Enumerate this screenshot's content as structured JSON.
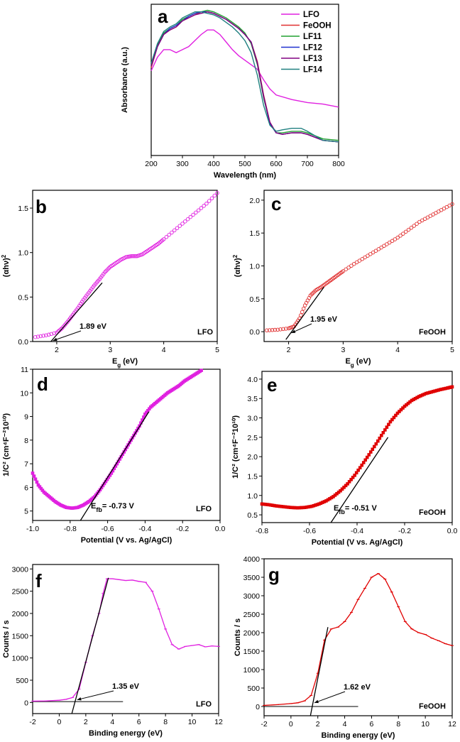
{
  "chart_data": [
    {
      "panel": "a",
      "type": "line",
      "title": "",
      "xlabel": "Wavelength (nm)",
      "ylabel": "Absorbance (a.u.)",
      "xlim": [
        200,
        800
      ],
      "ylim": [
        0,
        1
      ],
      "xticks": [
        200,
        300,
        400,
        500,
        600,
        700,
        800
      ],
      "yticks": [],
      "legend_position": "top-right",
      "series": [
        {
          "name": "LFO",
          "color": "#e020e0",
          "x": [
            200,
            220,
            240,
            260,
            280,
            300,
            320,
            340,
            360,
            380,
            400,
            420,
            440,
            460,
            480,
            500,
            520,
            540,
            560,
            580,
            600,
            650,
            700,
            750,
            800
          ],
          "y": [
            0.56,
            0.65,
            0.7,
            0.7,
            0.68,
            0.7,
            0.72,
            0.76,
            0.8,
            0.83,
            0.83,
            0.8,
            0.75,
            0.7,
            0.66,
            0.63,
            0.6,
            0.57,
            0.5,
            0.44,
            0.4,
            0.37,
            0.35,
            0.34,
            0.32
          ]
        },
        {
          "name": "FeOOH",
          "color": "#e03030",
          "x": [
            200,
            220,
            240,
            260,
            280,
            300,
            320,
            340,
            360,
            380,
            400,
            420,
            440,
            460,
            480,
            500,
            520,
            540,
            560,
            580,
            600,
            620,
            650,
            680,
            700,
            750,
            800
          ],
          "y": [
            0.58,
            0.72,
            0.8,
            0.83,
            0.85,
            0.89,
            0.91,
            0.93,
            0.95,
            0.95,
            0.94,
            0.92,
            0.9,
            0.87,
            0.84,
            0.8,
            0.75,
            0.62,
            0.4,
            0.22,
            0.15,
            0.14,
            0.15,
            0.15,
            0.14,
            0.1,
            0.09
          ]
        },
        {
          "name": "LF11",
          "color": "#20a030",
          "x": [
            200,
            220,
            240,
            260,
            280,
            300,
            320,
            340,
            360,
            380,
            400,
            420,
            440,
            460,
            480,
            500,
            520,
            540,
            560,
            580,
            600,
            620,
            650,
            680,
            700,
            750,
            800
          ],
          "y": [
            0.6,
            0.73,
            0.81,
            0.84,
            0.86,
            0.9,
            0.92,
            0.94,
            0.95,
            0.96,
            0.95,
            0.93,
            0.91,
            0.88,
            0.85,
            0.81,
            0.74,
            0.6,
            0.38,
            0.21,
            0.15,
            0.15,
            0.16,
            0.16,
            0.15,
            0.11,
            0.1
          ]
        },
        {
          "name": "LF12",
          "color": "#2030d0",
          "x": [
            200,
            220,
            240,
            260,
            280,
            300,
            320,
            340,
            360,
            380,
            400,
            420,
            440,
            460,
            480,
            500,
            520,
            540,
            560,
            580,
            600,
            620,
            650,
            680,
            700,
            750,
            800
          ],
          "y": [
            0.59,
            0.72,
            0.8,
            0.84,
            0.86,
            0.89,
            0.92,
            0.94,
            0.95,
            0.95,
            0.94,
            0.92,
            0.9,
            0.87,
            0.84,
            0.8,
            0.75,
            0.61,
            0.39,
            0.21,
            0.15,
            0.14,
            0.15,
            0.15,
            0.14,
            0.1,
            0.09
          ]
        },
        {
          "name": "LF13",
          "color": "#800080",
          "x": [
            200,
            220,
            240,
            260,
            280,
            300,
            320,
            340,
            360,
            380,
            400,
            420,
            440,
            460,
            480,
            500,
            520,
            540,
            560,
            580,
            600,
            620,
            650,
            680,
            700,
            750,
            800
          ],
          "y": [
            0.59,
            0.72,
            0.8,
            0.83,
            0.85,
            0.89,
            0.91,
            0.93,
            0.94,
            0.95,
            0.94,
            0.92,
            0.9,
            0.87,
            0.84,
            0.8,
            0.75,
            0.61,
            0.39,
            0.22,
            0.15,
            0.14,
            0.15,
            0.15,
            0.14,
            0.1,
            0.09
          ]
        },
        {
          "name": "LF14",
          "color": "#208080",
          "x": [
            200,
            220,
            240,
            260,
            280,
            300,
            320,
            340,
            360,
            380,
            400,
            420,
            440,
            460,
            480,
            500,
            520,
            540,
            560,
            580,
            600,
            620,
            650,
            680,
            700,
            750,
            800
          ],
          "y": [
            0.61,
            0.74,
            0.82,
            0.85,
            0.87,
            0.91,
            0.93,
            0.95,
            0.95,
            0.94,
            0.93,
            0.91,
            0.88,
            0.85,
            0.81,
            0.76,
            0.68,
            0.53,
            0.33,
            0.2,
            0.16,
            0.17,
            0.18,
            0.18,
            0.16,
            0.1,
            0.09
          ]
        }
      ]
    },
    {
      "panel": "b",
      "type": "scatter",
      "xlabel": "E",
      "xlabel_sub": "g",
      "xlabel_unit": " (eV)",
      "ylabel": "(αhν)",
      "ylabel_sup": "2",
      "xlim": [
        1.55,
        5
      ],
      "ylim": [
        0,
        1.7
      ],
      "xticks": [
        2,
        3,
        4,
        5
      ],
      "yticks": [
        0.0,
        0.5,
        1.0,
        1.5
      ],
      "ytick_labels": [
        "0.0",
        "0.5",
        "1.0",
        "1.5"
      ],
      "sample": "LFO",
      "color": "#e020e0",
      "marker": "open-circle",
      "x": [
        1.6,
        1.8,
        2.0,
        2.1,
        2.2,
        2.3,
        2.4,
        2.5,
        2.6,
        2.7,
        2.8,
        2.9,
        3.0,
        3.1,
        3.2,
        3.3,
        3.4,
        3.5,
        3.6,
        3.7,
        3.8,
        3.9,
        4.0,
        4.2,
        4.4,
        4.6,
        4.8,
        5.0
      ],
      "y": [
        0.05,
        0.07,
        0.1,
        0.15,
        0.22,
        0.3,
        0.38,
        0.47,
        0.55,
        0.63,
        0.7,
        0.78,
        0.84,
        0.88,
        0.92,
        0.95,
        0.96,
        0.96,
        0.98,
        1.02,
        1.06,
        1.1,
        1.15,
        1.25,
        1.35,
        1.45,
        1.55,
        1.67
      ],
      "fit_line": {
        "x": [
          1.89,
          2.85
        ],
        "y": [
          0.0,
          0.66
        ]
      },
      "annotation": "1.89 eV",
      "annotation_target": [
        1.95,
        0.02
      ]
    },
    {
      "panel": "c",
      "type": "scatter",
      "xlabel": "E",
      "xlabel_sub": "g",
      "xlabel_unit": " (eV)",
      "ylabel": "(αhν)",
      "ylabel_sup": "2",
      "xlim": [
        1.55,
        5
      ],
      "ylim": [
        -0.15,
        2.15
      ],
      "xticks": [
        2,
        3,
        4,
        5
      ],
      "yticks": [
        0.0,
        0.5,
        1.0,
        1.5,
        2.0
      ],
      "ytick_labels": [
        "0.0",
        "0.5",
        "1.0",
        "1.5",
        "2.0"
      ],
      "sample": "FeOOH",
      "color": "#e03030",
      "marker": "open-circle",
      "x": [
        1.6,
        1.8,
        2.0,
        2.1,
        2.2,
        2.3,
        2.4,
        2.5,
        2.6,
        2.7,
        2.8,
        2.9,
        3.0,
        3.2,
        3.4,
        3.6,
        3.8,
        4.0,
        4.2,
        4.4,
        4.6,
        4.8,
        5.0
      ],
      "y": [
        0.02,
        0.03,
        0.05,
        0.08,
        0.2,
        0.4,
        0.55,
        0.63,
        0.68,
        0.74,
        0.8,
        0.86,
        0.92,
        1.03,
        1.13,
        1.23,
        1.33,
        1.43,
        1.55,
        1.67,
        1.76,
        1.85,
        1.94
      ],
      "fit_line": {
        "x": [
          1.95,
          2.65
        ],
        "y": [
          -0.12,
          0.68
        ]
      },
      "annotation": "1.95 eV",
      "annotation_target": [
        2.05,
        -0.02
      ]
    },
    {
      "panel": "d",
      "type": "scatter",
      "xlabel": "Potential (V vs. Ag/AgCl)",
      "ylabel": "1/C² (cm⁴F⁻²10¹⁰)",
      "xlim": [
        -1.0,
        0.0
      ],
      "ylim": [
        4.6,
        11.0
      ],
      "xticks": [
        -1.0,
        -0.8,
        -0.6,
        -0.4,
        -0.2,
        0.0
      ],
      "xtick_labels": [
        "-1.0",
        "-0.8",
        "-0.6",
        "-0.4",
        "-0.2",
        "0.0"
      ],
      "yticks": [
        5,
        6,
        7,
        8,
        9,
        10,
        11
      ],
      "sample": "LFO",
      "color": "#e020e0",
      "marker": "filled-square",
      "x": [
        -1.0,
        -0.97,
        -0.94,
        -0.91,
        -0.88,
        -0.85,
        -0.82,
        -0.79,
        -0.76,
        -0.73,
        -0.7,
        -0.67,
        -0.64,
        -0.61,
        -0.58,
        -0.55,
        -0.52,
        -0.49,
        -0.46,
        -0.43,
        -0.4,
        -0.37,
        -0.34,
        -0.31,
        -0.28,
        -0.25,
        -0.22,
        -0.19,
        -0.16,
        -0.13,
        -0.1
      ],
      "y": [
        6.6,
        6.1,
        5.8,
        5.6,
        5.4,
        5.25,
        5.15,
        5.12,
        5.15,
        5.25,
        5.4,
        5.6,
        5.9,
        6.25,
        6.6,
        7.0,
        7.4,
        7.8,
        8.2,
        8.6,
        9.1,
        9.4,
        9.6,
        9.8,
        10.0,
        10.15,
        10.3,
        10.5,
        10.65,
        10.8,
        10.95
      ],
      "fit_line": {
        "x": [
          -0.745,
          -0.38
        ],
        "y": [
          4.6,
          9.2
        ]
      },
      "annotation": "= -0.73 V",
      "annotation_prefix": "E",
      "annotation_sub": "fb"
    },
    {
      "panel": "e",
      "type": "scatter",
      "xlabel": "Potential (V vs. Ag/AgCl)",
      "ylabel": "1/C² (cm⁴F⁻²10¹⁰)",
      "xlim": [
        -0.8,
        0.0
      ],
      "ylim": [
        0.3,
        4.2
      ],
      "xticks": [
        -0.8,
        -0.6,
        -0.4,
        -0.2,
        0.0
      ],
      "xtick_labels": [
        "-0.8",
        "-0.6",
        "-0.4",
        "-0.2",
        "0.0"
      ],
      "yticks": [
        0.5,
        1.0,
        1.5,
        2.0,
        2.5,
        3.0,
        3.5,
        4.0
      ],
      "ytick_labels": [
        "0.5",
        "1.0",
        "1.5",
        "2.0",
        "2.5",
        "3.0",
        "3.5",
        "4.0"
      ],
      "sample": "FeOOH",
      "color": "#e00000",
      "marker": "filled-square",
      "x": [
        -0.8,
        -0.77,
        -0.74,
        -0.71,
        -0.68,
        -0.65,
        -0.62,
        -0.59,
        -0.56,
        -0.53,
        -0.5,
        -0.47,
        -0.44,
        -0.41,
        -0.38,
        -0.35,
        -0.32,
        -0.29,
        -0.26,
        -0.23,
        -0.2,
        -0.17,
        -0.14,
        -0.11,
        -0.08,
        -0.05,
        -0.02,
        0.0
      ],
      "y": [
        0.78,
        0.76,
        0.73,
        0.71,
        0.69,
        0.68,
        0.69,
        0.72,
        0.78,
        0.86,
        0.97,
        1.12,
        1.3,
        1.52,
        1.78,
        2.05,
        2.33,
        2.62,
        2.9,
        3.12,
        3.3,
        3.45,
        3.55,
        3.63,
        3.68,
        3.73,
        3.77,
        3.8
      ],
      "fit_line": {
        "x": [
          -0.51,
          -0.27
        ],
        "y": [
          0.3,
          2.5
        ]
      },
      "annotation": "= -0.51 V",
      "annotation_prefix": "E",
      "annotation_sub": "fb"
    },
    {
      "panel": "f",
      "type": "line",
      "xlabel": "Binding energy (eV)",
      "ylabel": "Counts / s",
      "xlim": [
        -2,
        12
      ],
      "ylim": [
        -250,
        3100
      ],
      "xticks": [
        -2,
        0,
        2,
        4,
        6,
        8,
        10,
        12
      ],
      "yticks": [
        0,
        500,
        1000,
        1500,
        2000,
        2500,
        3000
      ],
      "sample": "LFO",
      "color": "#e020e0",
      "x": [
        -2,
        -1,
        0,
        0.5,
        1,
        1.5,
        2,
        2.5,
        3,
        3.3,
        3.6,
        4,
        4.5,
        5,
        5.5,
        6,
        6.5,
        7,
        7.5,
        8,
        8.5,
        9,
        9.5,
        10,
        10.5,
        11,
        11.5,
        12
      ],
      "y": [
        30,
        35,
        50,
        70,
        110,
        300,
        900,
        1500,
        2000,
        2450,
        2780,
        2780,
        2760,
        2740,
        2750,
        2720,
        2700,
        2500,
        2100,
        1650,
        1300,
        1200,
        1260,
        1280,
        1300,
        1250,
        1270,
        1260
      ],
      "fit_line": {
        "x": [
          0.95,
          3.7
        ],
        "y": [
          -250,
          2800
        ]
      },
      "baseline": {
        "x": [
          -2,
          4.8
        ],
        "y": [
          20,
          20
        ]
      },
      "annotation": "1.35 eV"
    },
    {
      "panel": "g",
      "type": "line",
      "xlabel": "Binding energy (eV)",
      "ylabel": "Counts / s",
      "xlim": [
        -2,
        12
      ],
      "ylim": [
        -250,
        4000
      ],
      "xticks": [
        -2,
        0,
        2,
        4,
        6,
        8,
        10,
        12
      ],
      "yticks": [
        0,
        500,
        1000,
        1500,
        2000,
        2500,
        3000,
        3500,
        4000
      ],
      "sample": "FeOOH",
      "color": "#e00000",
      "x": [
        -2,
        -1,
        0,
        0.5,
        1,
        1.5,
        2,
        2.5,
        3,
        3.5,
        4,
        4.5,
        5,
        5.5,
        6,
        6.5,
        7,
        7.5,
        8,
        8.5,
        9,
        9.5,
        10,
        10.5,
        11,
        11.5,
        12
      ],
      "y": [
        30,
        50,
        80,
        100,
        150,
        300,
        900,
        1800,
        2100,
        2150,
        2300,
        2550,
        2900,
        3200,
        3500,
        3600,
        3450,
        3100,
        2700,
        2300,
        2100,
        2000,
        1950,
        1850,
        1780,
        1700,
        1650
      ],
      "fit_line": {
        "x": [
          1.45,
          2.75
        ],
        "y": [
          -250,
          2150
        ]
      },
      "baseline": {
        "x": [
          -2,
          5.0
        ],
        "y": [
          0,
          0
        ]
      },
      "annotation": "1.62 eV"
    }
  ]
}
